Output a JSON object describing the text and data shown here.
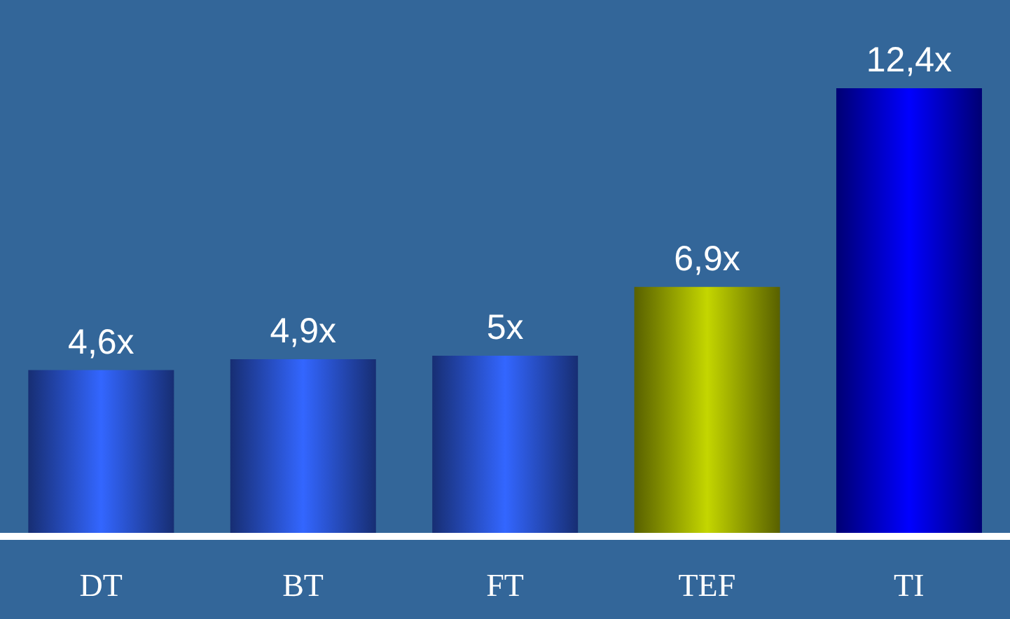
{
  "chart_data": {
    "type": "bar",
    "categories": [
      "DT",
      "BT",
      "FT",
      "TEF",
      "TI"
    ],
    "values": [
      4.6,
      4.9,
      5,
      6.9,
      12.4
    ],
    "colors": [
      "#3366ff",
      "#3366ff",
      "#3366ff",
      "#c4d600",
      "#0000ff"
    ],
    "value_labels": [
      "4,6x",
      "4,9x",
      "5x",
      "6,9x",
      "12,4x"
    ],
    "grid": false,
    "legend": false
  }
}
